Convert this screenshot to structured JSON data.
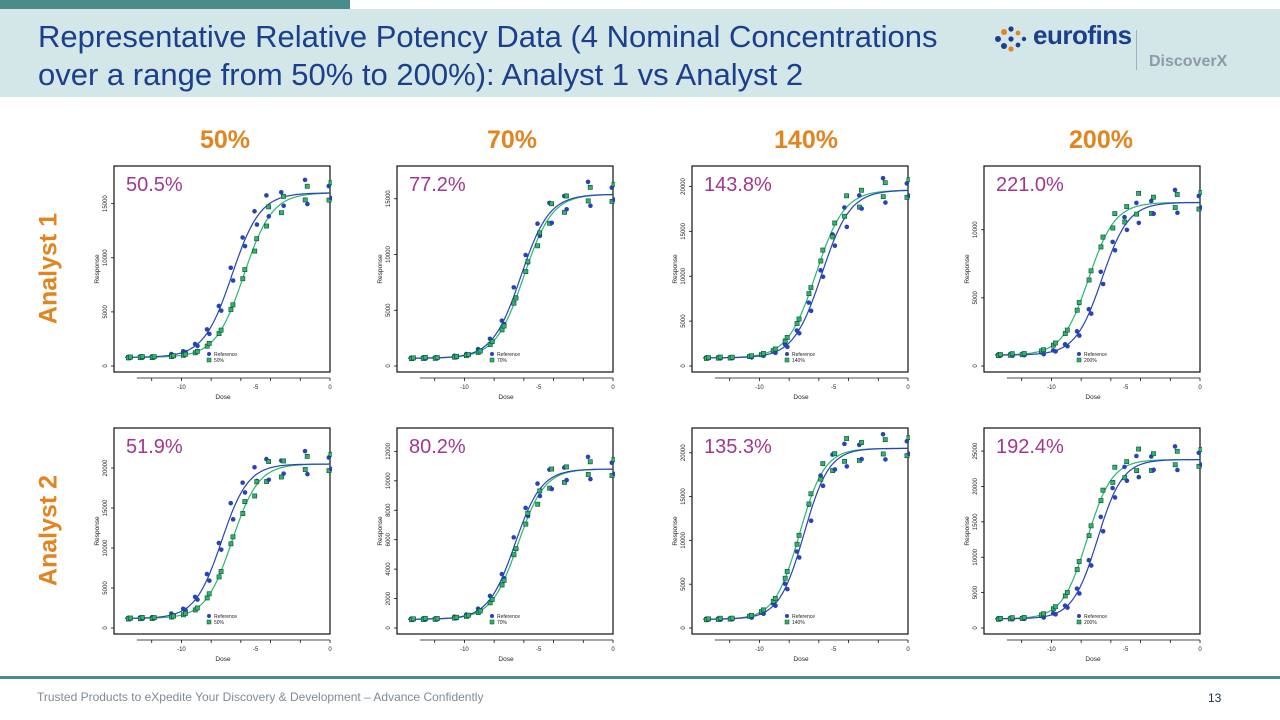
{
  "slide": {
    "title": "Representative Relative Potency Data (4 Nominal Concentrations over a range from 50% to 200%): Analyst 1 vs Analyst 2",
    "logo_text": "eurofins",
    "logo_sub": "DiscoverX",
    "footer": "Trusted Products to eXpedite Your Discovery & Development – Advance Confidently",
    "page_number": "13",
    "columns": [
      "50%",
      "70%",
      "140%",
      "200%"
    ],
    "rows": [
      "Analyst 1",
      "Analyst 2"
    ]
  },
  "colors": {
    "title": "#1b3f8c",
    "accent": "#e2841f",
    "potency": "#a2378e",
    "reference": "#2743b8",
    "test": "#2bb573",
    "header_bg": "#d3e7e8",
    "bar": "#4a8b8c"
  },
  "chart_data": [
    {
      "type": "scatter",
      "panel": "analyst1-50",
      "relative_potency": "50.5%",
      "xlabel": "Dose",
      "ylabel": "Response",
      "xlim": [
        -14,
        0
      ],
      "ylim": [
        0,
        17000
      ],
      "yticks": [
        0,
        5000,
        10000,
        15000
      ],
      "xticks": [
        -10,
        -5,
        0
      ],
      "legend": [
        "Reference",
        "50%"
      ],
      "bottom": 800,
      "top": 16000,
      "ref_ec50": -6.6,
      "test_ec50": -5.8,
      "hill": 0.75
    },
    {
      "type": "scatter",
      "panel": "analyst1-70",
      "relative_potency": "77.2%",
      "xlabel": "Dose",
      "ylabel": "Response",
      "xlim": [
        -14,
        0
      ],
      "ylim": [
        0,
        16500
      ],
      "yticks": [
        0,
        5000,
        10000,
        15000
      ],
      "xticks": [
        -10,
        -5,
        0
      ],
      "legend": [
        "Reference",
        "70%"
      ],
      "bottom": 700,
      "top": 15400,
      "ref_ec50": -6.2,
      "test_ec50": -6.0,
      "hill": 0.75
    },
    {
      "type": "scatter",
      "panel": "analyst1-140",
      "relative_potency": "143.8%",
      "xlabel": "Dose",
      "ylabel": "Response",
      "xlim": [
        -14,
        0
      ],
      "ylim": [
        0,
        20500
      ],
      "yticks": [
        0,
        5000,
        10000,
        15000,
        20000
      ],
      "xticks": [
        -10,
        -5,
        0
      ],
      "legend": [
        "Reference",
        "140%"
      ],
      "bottom": 900,
      "top": 19600,
      "ref_ec50": -5.8,
      "test_ec50": -6.2,
      "hill": 0.75
    },
    {
      "type": "scatter",
      "panel": "analyst1-200",
      "relative_potency": "221.0%",
      "xlabel": "Dose",
      "ylabel": "Response",
      "xlim": [
        -14,
        0
      ],
      "ylim": [
        0,
        13500
      ],
      "yticks": [
        0,
        5000,
        10000
      ],
      "xticks": [
        -10,
        -5,
        0
      ],
      "legend": [
        "Reference",
        "200%"
      ],
      "bottom": 800,
      "top": 12000,
      "ref_ec50": -6.6,
      "test_ec50": -7.5,
      "hill": 0.8
    },
    {
      "type": "scatter",
      "panel": "analyst2-50",
      "relative_potency": "51.9%",
      "xlabel": "Dose",
      "ylabel": "Response",
      "xlim": [
        -14,
        0
      ],
      "ylim": [
        0,
        23000
      ],
      "yticks": [
        0,
        5000,
        10000,
        15000,
        20000
      ],
      "xticks": [
        -10,
        -5,
        0
      ],
      "legend": [
        "Reference",
        "50%"
      ],
      "bottom": 1200,
      "top": 20500,
      "ref_ec50": -7.3,
      "test_ec50": -6.6,
      "hill": 0.8
    },
    {
      "type": "scatter",
      "panel": "analyst2-70",
      "relative_potency": "80.2%",
      "xlabel": "Dose",
      "ylabel": "Response",
      "xlim": [
        -14,
        0
      ],
      "ylim": [
        0,
        12500
      ],
      "yticks": [
        0,
        2000,
        4000,
        6000,
        8000,
        10000,
        12000
      ],
      "xticks": [
        -10,
        -5,
        0
      ],
      "legend": [
        "Reference",
        "70%"
      ],
      "bottom": 600,
      "top": 10800,
      "ref_ec50": -6.6,
      "test_ec50": -6.4,
      "hill": 0.8
    },
    {
      "type": "scatter",
      "panel": "analyst2-140",
      "relative_potency": "135.3%",
      "xlabel": "Dose",
      "ylabel": "Response",
      "xlim": [
        -14,
        0
      ],
      "ylim": [
        0,
        21000
      ],
      "yticks": [
        0,
        5000,
        10000,
        15000,
        20000
      ],
      "xticks": [
        -10,
        -5,
        0
      ],
      "legend": [
        "Reference",
        "140%"
      ],
      "bottom": 1000,
      "top": 20500,
      "ref_ec50": -7.0,
      "test_ec50": -7.3,
      "hill": 0.85
    },
    {
      "type": "scatter",
      "panel": "analyst2-200",
      "relative_potency": "192.4%",
      "xlabel": "Dose",
      "ylabel": "Response",
      "xlim": [
        -14,
        0
      ],
      "ylim": [
        0,
        26000
      ],
      "yticks": [
        0,
        5000,
        10000,
        15000,
        20000,
        25000
      ],
      "xticks": [
        -10,
        -5,
        0
      ],
      "legend": [
        "Reference",
        "200%"
      ],
      "bottom": 1300,
      "top": 23800,
      "ref_ec50": -6.9,
      "test_ec50": -7.6,
      "hill": 0.85
    }
  ]
}
